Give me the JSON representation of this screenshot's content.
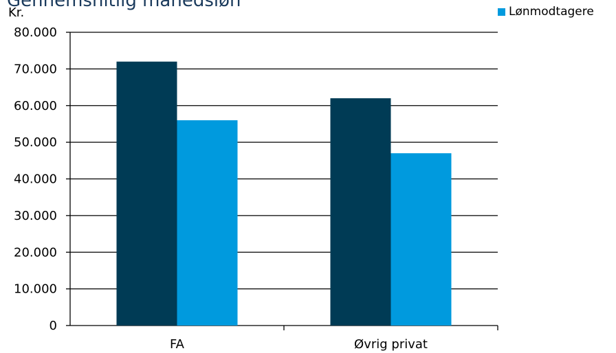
{
  "chart_data": {
    "type": "bar",
    "title": "Gennemsnitlig månedsløn",
    "ylabel": "Kr.",
    "xlabel": "",
    "categories": [
      "FA",
      "Øvrig privat"
    ],
    "series": [
      {
        "values": [
          72000,
          62000
        ],
        "color": "#003b55"
      },
      {
        "name": "Lønmodtagere",
        "values": [
          56000,
          47000
        ],
        "color": "#009ade"
      }
    ],
    "ylim": [
      0,
      80000
    ],
    "yticks": [
      "0",
      "10.000",
      "20.000",
      "30.000",
      "40.000",
      "50.000",
      "60.000",
      "70.000",
      "80.000"
    ],
    "grid": true,
    "legend": "top-right"
  }
}
